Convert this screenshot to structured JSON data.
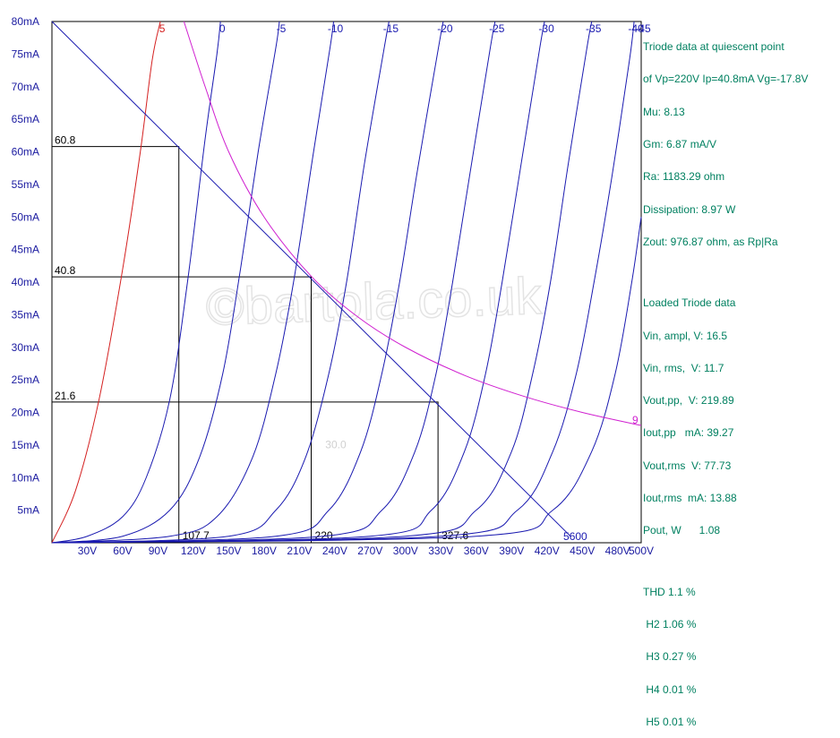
{
  "chart_data": {
    "type": "line",
    "xlim": [
      0,
      500
    ],
    "ylim": [
      0,
      80
    ],
    "x_ticks": [
      "30V",
      "60V",
      "90V",
      "120V",
      "150V",
      "180V",
      "210V",
      "240V",
      "270V",
      "300V",
      "330V",
      "360V",
      "390V",
      "420V",
      "450V",
      "480V",
      "500V"
    ],
    "x_tick_values": [
      30,
      60,
      90,
      120,
      150,
      180,
      210,
      240,
      270,
      300,
      330,
      360,
      390,
      420,
      450,
      480,
      500
    ],
    "y_ticks": [
      "5mA",
      "10mA",
      "15mA",
      "20mA",
      "25mA",
      "30mA",
      "35mA",
      "40mA",
      "45mA",
      "50mA",
      "55mA",
      "60mA",
      "65mA",
      "70mA",
      "75mA",
      "80mA"
    ],
    "y_tick_values": [
      5,
      10,
      15,
      20,
      25,
      30,
      35,
      40,
      45,
      50,
      55,
      60,
      65,
      70,
      75,
      80
    ],
    "grid": false,
    "series": [
      {
        "name": "5",
        "color": "#d42020",
        "points": [
          [
            0,
            0
          ],
          [
            20,
            8
          ],
          [
            40,
            22
          ],
          [
            60,
            42
          ],
          [
            75,
            60
          ],
          [
            85,
            74
          ],
          [
            92,
            80
          ]
        ]
      },
      {
        "name": "0",
        "color": "#1a1ab0",
        "points": [
          [
            0,
            0
          ],
          [
            30,
            1
          ],
          [
            60,
            4
          ],
          [
            80,
            10
          ],
          [
            100,
            22
          ],
          [
            115,
            40
          ],
          [
            130,
            62
          ],
          [
            140,
            75
          ],
          [
            143,
            80
          ]
        ]
      },
      {
        "name": "-5",
        "color": "#1a1ab0",
        "points": [
          [
            0,
            0
          ],
          [
            60,
            1
          ],
          [
            100,
            5
          ],
          [
            125,
            13
          ],
          [
            145,
            26
          ],
          [
            160,
            42
          ],
          [
            175,
            60
          ],
          [
            190,
            76
          ],
          [
            193,
            80
          ]
        ]
      },
      {
        "name": "-10",
        "color": "#1a1ab0",
        "points": [
          [
            0,
            0
          ],
          [
            100,
            1
          ],
          [
            140,
            4
          ],
          [
            170,
            13
          ],
          [
            190,
            26
          ],
          [
            205,
            40
          ],
          [
            222,
            60
          ],
          [
            236,
            76
          ],
          [
            239,
            80
          ]
        ]
      },
      {
        "name": "-15",
        "color": "#1a1ab0",
        "points": [
          [
            0,
            0
          ],
          [
            150,
            1
          ],
          [
            190,
            5
          ],
          [
            215,
            13
          ],
          [
            235,
            26
          ],
          [
            250,
            40
          ],
          [
            265,
            58
          ],
          [
            282,
            76
          ],
          [
            286,
            80
          ]
        ]
      },
      {
        "name": "-20",
        "color": "#1a1ab0",
        "points": [
          [
            0,
            0
          ],
          [
            190,
            1
          ],
          [
            235,
            5
          ],
          [
            262,
            14
          ],
          [
            280,
            26
          ],
          [
            295,
            40
          ],
          [
            310,
            57
          ],
          [
            328,
            76
          ],
          [
            332,
            80
          ]
        ]
      },
      {
        "name": "-25",
        "color": "#1a1ab0",
        "points": [
          [
            0,
            0
          ],
          [
            230,
            1
          ],
          [
            280,
            5
          ],
          [
            308,
            14
          ],
          [
            326,
            26
          ],
          [
            340,
            40
          ],
          [
            355,
            57
          ],
          [
            372,
            76
          ],
          [
            376,
            80
          ]
        ]
      },
      {
        "name": "-30",
        "color": "#1a1ab0",
        "points": [
          [
            0,
            0
          ],
          [
            270,
            1
          ],
          [
            322,
            5
          ],
          [
            350,
            14
          ],
          [
            368,
            26
          ],
          [
            382,
            40
          ],
          [
            398,
            58
          ],
          [
            414,
            76
          ],
          [
            418,
            80
          ]
        ]
      },
      {
        "name": "-35",
        "color": "#1a1ab0",
        "points": [
          [
            0,
            0
          ],
          [
            300,
            1
          ],
          [
            360,
            5
          ],
          [
            390,
            14
          ],
          [
            408,
            26
          ],
          [
            423,
            40
          ],
          [
            438,
            58
          ],
          [
            454,
            76
          ],
          [
            458,
            80
          ]
        ]
      },
      {
        "name": "-40",
        "color": "#1a1ab0",
        "points": [
          [
            0,
            0
          ],
          [
            330,
            1
          ],
          [
            395,
            5
          ],
          [
            425,
            14
          ],
          [
            445,
            26
          ],
          [
            460,
            40
          ],
          [
            475,
            56
          ],
          [
            490,
            74
          ],
          [
            494,
            80
          ]
        ]
      },
      {
        "name": "-45",
        "color": "#1a1ab0",
        "points": [
          [
            0,
            0
          ],
          [
            360,
            1
          ],
          [
            425,
            5
          ],
          [
            458,
            14
          ],
          [
            478,
            26
          ],
          [
            492,
            40
          ],
          [
            500,
            50
          ]
        ]
      }
    ],
    "load_line": {
      "label": "5600",
      "color": "#1a1ab0",
      "points": [
        [
          0,
          80
        ],
        [
          440,
          1
        ]
      ]
    },
    "dissipation_curve": {
      "label": "9",
      "color": "#d020d0",
      "points": [
        [
          112,
          80
        ],
        [
          130,
          70
        ],
        [
          150,
          60
        ],
        [
          180,
          50
        ],
        [
          220,
          40.9
        ],
        [
          260,
          34.6
        ],
        [
          300,
          30
        ],
        [
          350,
          25.7
        ],
        [
          400,
          22.5
        ],
        [
          450,
          20
        ],
        [
          500,
          18
        ]
      ]
    },
    "operating_lines": [
      {
        "y": 60.8,
        "x": 107.7,
        "ylabel": "60.8",
        "xlabel": "107.7"
      },
      {
        "y": 40.8,
        "x": 220,
        "ylabel": "40.8",
        "xlabel": "220"
      },
      {
        "y": 21.6,
        "x": 327.6,
        "ylabel": "21.6",
        "xlabel": "327.6"
      }
    ],
    "watermark": {
      "text": "©bartola.co.uk",
      "color": "#e4e4e4"
    },
    "faint_label": "30.0"
  },
  "info": {
    "lines": [
      "Triode data at quiescent point",
      "of Vp=220V Ip=40.8mA Vg=-17.8V",
      "Mu: 8.13",
      "Gm: 6.87 mA/V",
      "Ra: 1183.29 ohm",
      "Dissipation: 8.97 W",
      "Zout: 976.87 ohm, as Rp|Ra"
    ],
    "loaded": [
      "Loaded Triode data",
      "Vin, ampl, V: 16.5",
      "Vin, rms,  V: 11.7",
      "Vout,pp,  V: 219.89",
      "Iout,pp   mA: 39.27",
      "Vout,rms  V: 77.73",
      "Iout,rms  mA: 13.88",
      "Pout, W      1.08"
    ],
    "thd": [
      "THD 1.1 %",
      " H2 1.06 %",
      " H3 0.27 %",
      " H4 0.01 %",
      " H5 0.01 %"
    ]
  }
}
